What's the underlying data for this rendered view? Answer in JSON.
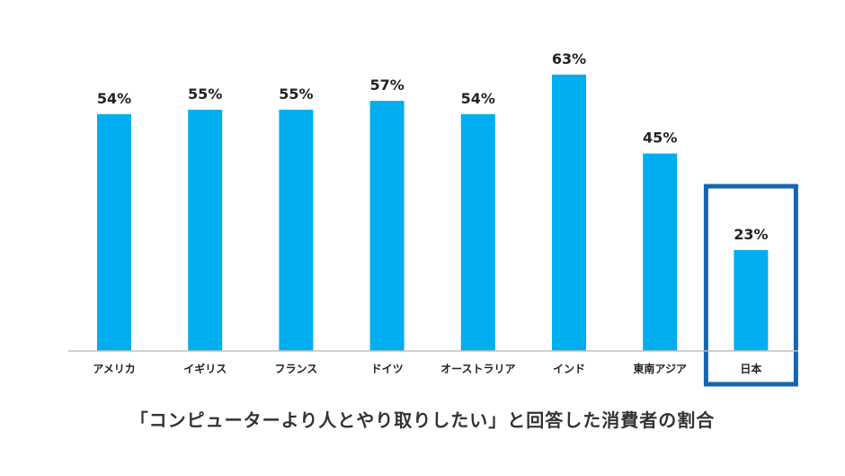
{
  "chart_data": {
    "type": "bar",
    "title": "「コンピューターより人とやり取りしたい」と回答した消費者の割合",
    "categories": [
      "アメリカ",
      "イギリス",
      "フランス",
      "ドイツ",
      "オーストラリア",
      "インド",
      "東南アジア",
      "日本"
    ],
    "values": [
      54,
      55,
      55,
      57,
      54,
      63,
      45,
      23
    ],
    "value_labels": [
      "54%",
      "55%",
      "55%",
      "57%",
      "54%",
      "63%",
      "45%",
      "23%"
    ],
    "unit": "%",
    "ylim": [
      0,
      100
    ],
    "highlighted_category": "日本",
    "grid": false,
    "legend": "none",
    "colors": {
      "bar": "#00AEEF",
      "highlight_frame": "#1565B0",
      "axis": "#BFBFBF",
      "text": "#222222"
    }
  }
}
